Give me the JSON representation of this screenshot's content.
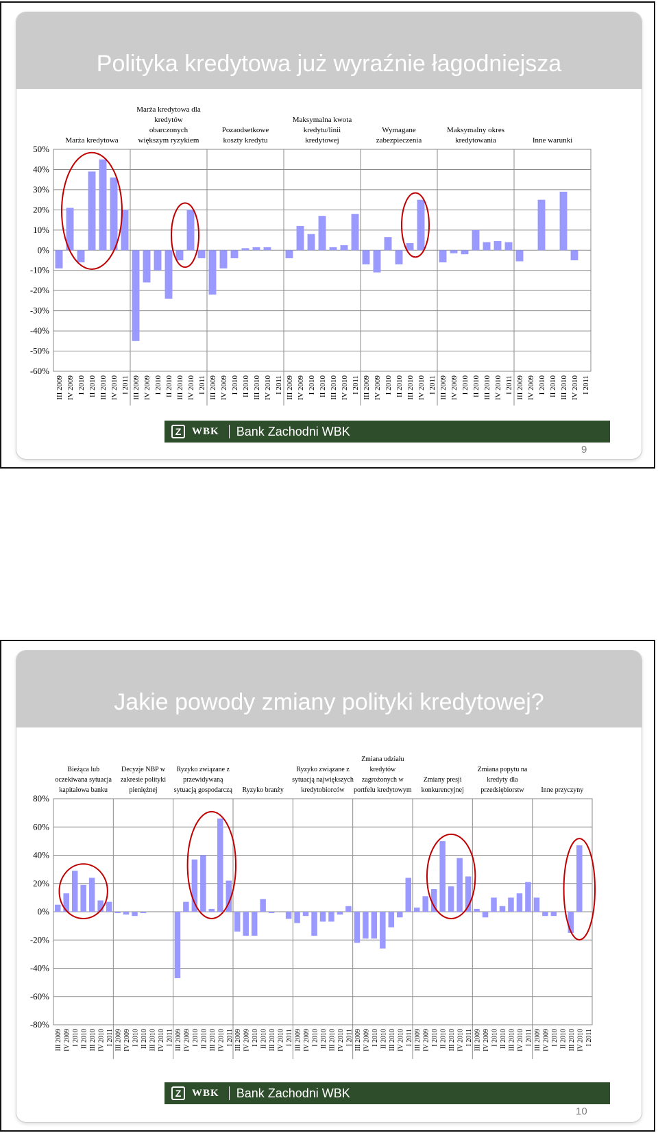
{
  "slides": [
    {
      "title": "Polityka kredytowa już wyraźnie łagodniejsza",
      "bank_name": "Bank Zachodni WBK",
      "logo_text": "WBK",
      "page_number": "9"
    },
    {
      "title": "Jakie powody zmiany polityki kredytowej?",
      "bank_name": "Bank Zachodni WBK",
      "logo_text": "WBK",
      "page_number": "10"
    }
  ],
  "colors": {
    "bar": "#9999ff",
    "grid": "#8a8a8a",
    "circle": "#c00000",
    "title_band": "#cbcbcb",
    "logo_bar": "#2e4d2a"
  },
  "chart_data": [
    {
      "type": "bar",
      "ylim": [
        -60,
        50
      ],
      "yticks": [
        50,
        40,
        30,
        20,
        10,
        0,
        -10,
        -20,
        -30,
        -40,
        -50,
        -60
      ],
      "tick_suffix": "%",
      "categories": [
        "III 2009",
        "IV 2009",
        "I 2010",
        "II 2010",
        "III 2010",
        "IV 2010",
        "I 2011"
      ],
      "groups": [
        {
          "label": [
            "Marża kredytowa"
          ],
          "values": [
            -9,
            21,
            -6,
            39,
            45,
            36,
            20
          ]
        },
        {
          "label": [
            "Marża kredytowa dla",
            "kredytów",
            "obarczonych",
            "większym ryzykiem"
          ],
          "values": [
            -45,
            -16,
            -10,
            -24,
            -5,
            20,
            -4
          ]
        },
        {
          "label": [
            "Pozaodsetkowe",
            "koszty kredytu"
          ],
          "values": [
            -22,
            -9,
            -4,
            1,
            1.5,
            1.5,
            0
          ]
        },
        {
          "label": [
            "Maksymalna kwota",
            "kredytu/linii",
            "kredytowej"
          ],
          "values": [
            -4,
            12,
            8,
            17,
            1.5,
            2.5,
            18
          ]
        },
        {
          "label": [
            "Wymagane",
            "zabezpieczenia"
          ],
          "values": [
            -7,
            -11,
            6.5,
            -7,
            3.5,
            25,
            0
          ]
        },
        {
          "label": [
            "Maksymalny okres",
            "kredytowania"
          ],
          "values": [
            -6,
            -1.5,
            -2,
            10,
            4,
            4.5,
            4
          ]
        },
        {
          "label": [
            "Inne warunki"
          ],
          "values": [
            -5.5,
            0,
            25,
            0,
            29,
            -5,
            0
          ]
        }
      ],
      "highlighted": [
        {
          "group": 0,
          "from": 1,
          "to": 5
        },
        {
          "group": 1,
          "from": 4,
          "to": 5
        },
        {
          "group": 4,
          "from": 4,
          "to": 5
        }
      ]
    },
    {
      "type": "bar",
      "ylim": [
        -80,
        80
      ],
      "yticks": [
        80,
        60,
        40,
        20,
        0,
        -20,
        -40,
        -60,
        -80
      ],
      "tick_suffix": "%",
      "categories": [
        "III 2009",
        "IV 2009",
        "I 2010",
        "II 2010",
        "III 2010",
        "IV 2010",
        "I 2011"
      ],
      "groups": [
        {
          "label": [
            "Bieżąca lub",
            "oczekiwana sytuacja",
            "kapitałowa banku"
          ],
          "values": [
            5,
            13,
            29,
            19,
            24,
            8,
            7
          ]
        },
        {
          "label": [
            "Decyzje NBP w",
            "zakresie polityki",
            "pieniężnej"
          ],
          "values": [
            -1,
            -2,
            -3,
            -1,
            0,
            0,
            0
          ]
        },
        {
          "label": [
            "Ryzyko związane z",
            "przewidywaną",
            "sytuacją gospodarczą"
          ],
          "values": [
            -47,
            7,
            37,
            40,
            2,
            66,
            22
          ]
        },
        {
          "label": [
            "Ryzyko branży"
          ],
          "values": [
            -14,
            -17,
            -17,
            9,
            -1,
            0,
            -5
          ]
        },
        {
          "label": [
            "Ryzyko związane z",
            "sytuacją największych",
            "kredytobiorców"
          ],
          "values": [
            -8,
            -3,
            -17,
            -7,
            -7,
            -2,
            4
          ]
        },
        {
          "label": [
            "Zmiana udziału",
            "kredytów",
            "zagrożonych w",
            "portfelu kredytowym"
          ],
          "values": [
            -22,
            -19,
            -19,
            -26,
            -11,
            -4,
            24
          ]
        },
        {
          "label": [
            "Zmiany presji",
            "konkurencyjnej"
          ],
          "values": [
            3,
            11,
            16,
            50,
            18,
            38,
            25
          ]
        },
        {
          "label": [
            "Zmiana popytu na",
            "kredyty dla",
            "przedsiębiorstw"
          ],
          "values": [
            2,
            -4,
            10,
            4,
            10,
            13,
            21
          ]
        },
        {
          "label": [
            "Inne przyczyny"
          ],
          "values": [
            10,
            -3,
            -3,
            0,
            -15,
            47,
            0
          ]
        }
      ],
      "highlighted": [
        {
          "group": 0,
          "from": 1,
          "to": 5
        },
        {
          "group": 2,
          "from": 2,
          "to": 6
        },
        {
          "group": 6,
          "from": 2,
          "to": 6
        },
        {
          "group": 8,
          "from": 4,
          "to": 6
        }
      ]
    }
  ]
}
